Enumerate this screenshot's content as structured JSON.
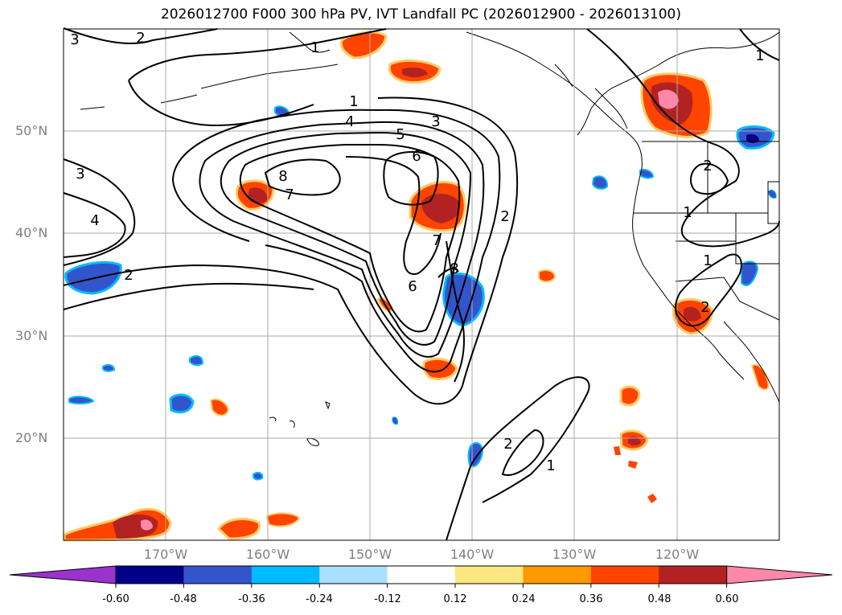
{
  "title": "2026012700 F000 300 hPa PV, IVT Landfall PC (2026012900 - 2026013100)",
  "lat_labels": [
    "50°N",
    "40°N",
    "30°N",
    "20°N"
  ],
  "lon_labels": [
    "170°W",
    "160°W",
    "150°W",
    "140°W",
    "130°W",
    "120°W"
  ],
  "contour_labels": [
    "3",
    "2",
    "1",
    "4",
    "5",
    "3",
    "6",
    "8",
    "7",
    "2",
    "7",
    "8",
    "6",
    "3",
    "4",
    "2",
    "2",
    "1",
    "1",
    "2",
    "1",
    "2",
    "1",
    "1"
  ],
  "colorbar": {
    "tick_labels": [
      "-0.60",
      "-0.48",
      "-0.36",
      "-0.24",
      "-0.12",
      "0.12",
      "0.24",
      "0.36",
      "0.48",
      "0.60"
    ],
    "colors": [
      "#9933cc",
      "#000088",
      "#3355cc",
      "#00bbff",
      "#aae0ff",
      "#ffffff",
      "#ffe680",
      "#ff9900",
      "#ff4400",
      "#b22222",
      "#ff88aa"
    ]
  }
}
